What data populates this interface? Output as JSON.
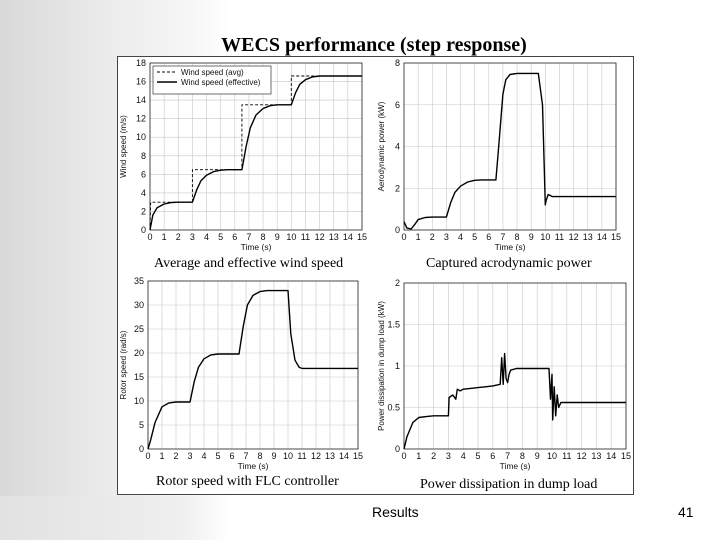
{
  "slide": {
    "title": "WECS performance (step response)",
    "footer_label": "Results",
    "page_number": "41"
  },
  "chart_data": [
    {
      "type": "line",
      "caption": "Average and effective wind speed",
      "xlabel": "Time (s)",
      "ylabel": "Wind speed (m/s)",
      "xlim": [
        0,
        15
      ],
      "ylim": [
        0,
        18
      ],
      "xticks": [
        "0",
        "1",
        "2",
        "3",
        "4",
        "5",
        "6",
        "7",
        "8",
        "9",
        "10",
        "11",
        "12",
        "13",
        "14",
        "15"
      ],
      "yticks": [
        "0",
        "2",
        "4",
        "6",
        "8",
        "10",
        "12",
        "14",
        "16",
        "18"
      ],
      "grid": true,
      "legend_position": "top-left",
      "series": [
        {
          "name": "Wind speed (avg)",
          "style": "dashed",
          "x": [
            0,
            0.05,
            3.0,
            3.0,
            6.5,
            6.5,
            10.0,
            10.0,
            15
          ],
          "y": [
            0.5,
            3.0,
            3.0,
            6.5,
            6.5,
            13.5,
            13.5,
            16.6,
            16.6
          ]
        },
        {
          "name": "Wind speed (effective)",
          "style": "solid",
          "x": [
            0,
            0.2,
            0.5,
            1.0,
            1.5,
            2.0,
            2.5,
            3.0,
            3.3,
            3.6,
            4.0,
            4.5,
            5.0,
            5.5,
            6.0,
            6.5,
            6.8,
            7.1,
            7.5,
            8.0,
            8.5,
            9.0,
            9.5,
            10.0,
            10.3,
            10.6,
            11.0,
            11.5,
            12.0,
            13.0,
            14.0,
            15.0
          ],
          "y": [
            0,
            1.6,
            2.4,
            2.8,
            2.95,
            3.0,
            3.0,
            3.0,
            4.3,
            5.3,
            5.9,
            6.3,
            6.45,
            6.5,
            6.5,
            6.5,
            9.0,
            11.0,
            12.4,
            13.1,
            13.4,
            13.5,
            13.5,
            13.5,
            14.8,
            15.7,
            16.2,
            16.5,
            16.6,
            16.6,
            16.6,
            16.6
          ]
        }
      ]
    },
    {
      "type": "line",
      "caption": "Captured acrodynamic power",
      "xlabel": "Time (s)",
      "ylabel": "Aerodynamic power (kW)",
      "xlim": [
        0,
        15
      ],
      "ylim": [
        0,
        8
      ],
      "xticks": [
        "0",
        "1",
        "2",
        "3",
        "4",
        "5",
        "6",
        "7",
        "8",
        "9",
        "10",
        "11",
        "12",
        "13",
        "14",
        "15"
      ],
      "yticks": [
        "0",
        "2",
        "4",
        "6",
        "8"
      ],
      "grid": true,
      "series": [
        {
          "x": [
            0,
            0.2,
            0.5,
            0.8,
            1.0,
            1.5,
            2.0,
            2.5,
            3.0,
            3.3,
            3.6,
            4.0,
            4.5,
            5.0,
            5.5,
            6.0,
            6.5,
            6.7,
            7.0,
            7.2,
            7.5,
            8.0,
            8.5,
            9.0,
            9.5,
            9.8,
            10.0,
            10.05,
            10.2,
            10.5,
            11.0,
            12.0,
            13.0,
            14.0,
            15.0
          ],
          "y": [
            0.4,
            0.1,
            0.05,
            0.3,
            0.5,
            0.6,
            0.62,
            0.62,
            0.62,
            1.3,
            1.8,
            2.1,
            2.3,
            2.38,
            2.4,
            2.4,
            2.4,
            4.0,
            6.5,
            7.2,
            7.45,
            7.5,
            7.5,
            7.5,
            7.5,
            6.0,
            1.2,
            1.4,
            1.7,
            1.6,
            1.6,
            1.6,
            1.6,
            1.6,
            1.6
          ]
        }
      ]
    },
    {
      "type": "line",
      "caption": "Rotor speed with FLC controller",
      "xlabel": "Time (s)",
      "ylabel": "Rotor speed (rad/s)",
      "xlim": [
        0,
        15
      ],
      "ylim": [
        0,
        35
      ],
      "xticks": [
        "0",
        "1",
        "2",
        "3",
        "4",
        "5",
        "6",
        "7",
        "8",
        "9",
        "10",
        "11",
        "12",
        "13",
        "14",
        "15"
      ],
      "yticks": [
        "0",
        "5",
        "10",
        "15",
        "20",
        "25",
        "30",
        "35"
      ],
      "grid": true,
      "series": [
        {
          "x": [
            0,
            0.2,
            0.5,
            1.0,
            1.5,
            2.0,
            2.5,
            3.0,
            3.3,
            3.6,
            4.0,
            4.5,
            5.0,
            5.5,
            6.0,
            6.5,
            6.8,
            7.1,
            7.5,
            8.0,
            8.5,
            9.0,
            9.5,
            10.0,
            10.2,
            10.5,
            10.8,
            11.0,
            12.0,
            13.0,
            14.0,
            15.0
          ],
          "y": [
            0,
            2.0,
            5.5,
            8.8,
            9.6,
            9.8,
            9.8,
            9.8,
            14.0,
            17.0,
            18.8,
            19.6,
            19.8,
            19.8,
            19.8,
            19.8,
            25.5,
            30.0,
            32.0,
            32.8,
            33.0,
            33.0,
            33.0,
            33.0,
            24.0,
            18.5,
            17.0,
            16.8,
            16.8,
            16.8,
            16.8,
            16.8
          ]
        }
      ]
    },
    {
      "type": "line",
      "caption": "Power dissipation in dump load",
      "xlabel": "Time (s)",
      "ylabel": "Power dissipation in dump load (kW)",
      "xlim": [
        0,
        15
      ],
      "ylim": [
        0,
        2
      ],
      "xticks": [
        "0",
        "1",
        "2",
        "3",
        "4",
        "5",
        "6",
        "7",
        "8",
        "9",
        "10",
        "11",
        "12",
        "13",
        "14",
        "15"
      ],
      "yticks": [
        "0",
        "0.5",
        "1",
        "1.5",
        "2"
      ],
      "grid": true,
      "series": [
        {
          "x": [
            0,
            0.2,
            0.6,
            1.0,
            1.5,
            2.0,
            2.5,
            3.0,
            3.05,
            3.3,
            3.5,
            3.6,
            3.8,
            4.0,
            4.5,
            5.0,
            5.5,
            6.0,
            6.5,
            6.6,
            6.7,
            6.8,
            6.9,
            7.0,
            7.1,
            7.2,
            7.4,
            7.6,
            8.0,
            8.5,
            9.0,
            9.5,
            9.7,
            9.8,
            9.9,
            10.0,
            10.05,
            10.15,
            10.25,
            10.35,
            10.45,
            10.6,
            11.0,
            12.0,
            13.0,
            14.0,
            15.0
          ],
          "y": [
            0,
            0.15,
            0.32,
            0.38,
            0.39,
            0.4,
            0.4,
            0.4,
            0.62,
            0.65,
            0.6,
            0.72,
            0.7,
            0.72,
            0.73,
            0.74,
            0.75,
            0.76,
            0.78,
            1.1,
            0.78,
            1.15,
            0.85,
            0.8,
            0.9,
            0.95,
            0.96,
            0.97,
            0.97,
            0.97,
            0.97,
            0.97,
            0.97,
            0.97,
            0.6,
            0.9,
            0.35,
            0.75,
            0.4,
            0.65,
            0.5,
            0.56,
            0.56,
            0.56,
            0.56,
            0.56,
            0.56
          ]
        }
      ]
    }
  ]
}
